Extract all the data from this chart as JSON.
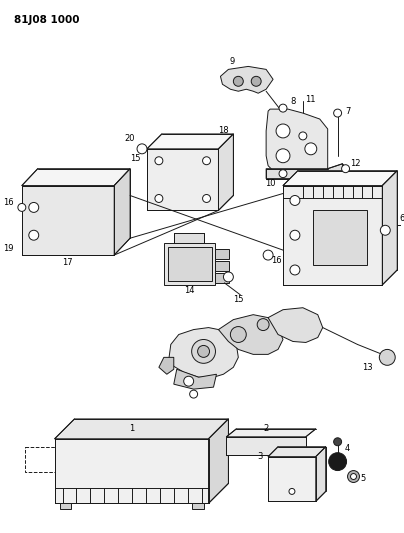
{
  "title": "81J08 1000",
  "background_color": "#ffffff",
  "line_color": "#1a1a1a",
  "figsize": [
    4.04,
    5.33
  ],
  "dpi": 100
}
